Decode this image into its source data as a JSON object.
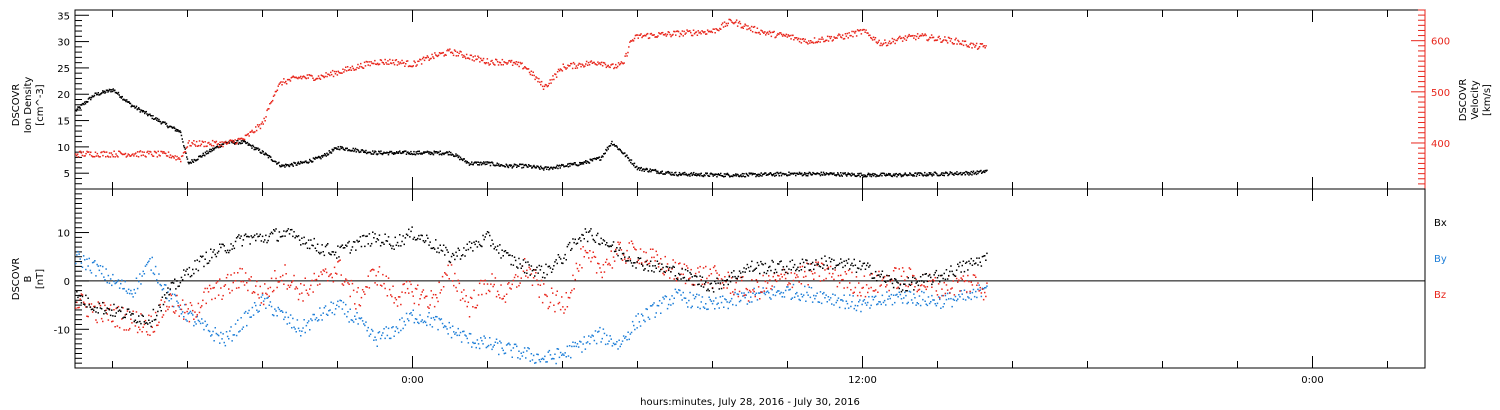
{
  "figure": {
    "xlabel": "hours:minutes, July 28, 2016 - July 30, 2016",
    "x_tick_labels": [
      "0:00",
      "12:00",
      "0:00"
    ]
  },
  "chart_data": [
    {
      "type": "scatter",
      "panel": "plasma",
      "ylabel_left": [
        "DSCOVR",
        "Ion Density",
        "[cm^-3]"
      ],
      "ylabel_right": [
        "DSCOVR",
        "Velocity",
        "[km/s]"
      ],
      "x_unit": "hours since 0:00 July 29, 2016",
      "xlim": [
        -9,
        27
      ],
      "ylim_left": [
        2,
        36
      ],
      "ylim_right": [
        310,
        660
      ],
      "left_ticks": [
        5,
        10,
        15,
        20,
        25,
        30,
        35
      ],
      "right_ticks": [
        400,
        500,
        600
      ],
      "series": [
        {
          "name": "",
          "axis": "left",
          "color": "#000000",
          "x": [
            -9.0,
            -8.5,
            -8.0,
            -7.5,
            -7.0,
            -6.5,
            -6.2,
            -6.0,
            -5.5,
            -5.0,
            -4.5,
            -4.0,
            -3.5,
            -3.0,
            -2.5,
            -2.0,
            -1.5,
            -1.0,
            -0.5,
            0.0,
            0.5,
            1.0,
            1.5,
            2.0,
            2.5,
            3.0,
            3.5,
            4.0,
            4.5,
            5.0,
            5.3,
            5.6,
            6.0,
            7.0,
            8.0,
            9.0,
            10.0,
            11.0,
            12.0,
            13.0,
            14.0,
            15.0,
            15.3
          ],
          "y": [
            17,
            20,
            21,
            18,
            16,
            14,
            13,
            7,
            9,
            11,
            11,
            9,
            6.5,
            7,
            8,
            10,
            9.5,
            9,
            9,
            9,
            9,
            9,
            7,
            7,
            6.5,
            6.5,
            6,
            6.5,
            7,
            8,
            11,
            9,
            6,
            5,
            4.8,
            4.8,
            5,
            5,
            4.8,
            4.8,
            5,
            5.2,
            5.5
          ]
        },
        {
          "name": "",
          "axis": "left",
          "color": "#000000",
          "x": [],
          "y": []
        },
        {
          "name": "",
          "axis": "right",
          "color": "#e8261c",
          "x": [
            -9.0,
            -8.0,
            -7.0,
            -6.5,
            -6.2,
            -6.0,
            -5.5,
            -5.0,
            -4.5,
            -4.0,
            -3.7,
            -3.5,
            -3.0,
            -2.5,
            -2.0,
            -1.5,
            -1.0,
            -0.5,
            0.0,
            0.5,
            1.0,
            1.5,
            2.0,
            2.5,
            3.0,
            3.5,
            4.0,
            4.5,
            5.0,
            5.3,
            5.6,
            5.8,
            6.0,
            7.0,
            8.0,
            8.5,
            9.0,
            9.5,
            10.0,
            10.5,
            11.0,
            11.5,
            12.0,
            12.5,
            13.0,
            13.5,
            14.0,
            14.5,
            15.0,
            15.3
          ],
          "y": [
            380,
            380,
            380,
            378,
            370,
            400,
            400,
            400,
            410,
            440,
            500,
            520,
            530,
            530,
            540,
            550,
            560,
            560,
            555,
            570,
            580,
            570,
            560,
            560,
            550,
            510,
            550,
            555,
            560,
            550,
            555,
            600,
            610,
            615,
            620,
            640,
            625,
            615,
            610,
            600,
            605,
            610,
            620,
            595,
            605,
            610,
            605,
            600,
            590,
            590
          ]
        }
      ]
    },
    {
      "type": "scatter",
      "panel": "magnetic-field",
      "ylabel_left": [
        "DSCOVR",
        "B",
        "[nT]"
      ],
      "x_unit": "hours since 0:00 July 29, 2016",
      "xlim": [
        -9,
        27
      ],
      "ylim": [
        -18,
        19
      ],
      "left_ticks": [
        -10,
        0,
        10
      ],
      "zero_line": true,
      "series": [
        {
          "name": "Bx",
          "color": "#000000",
          "x": [
            -9.0,
            -8.5,
            -8.0,
            -7.5,
            -7.0,
            -6.5,
            -6.0,
            -5.5,
            -5.0,
            -4.5,
            -4.0,
            -3.5,
            -3.0,
            -2.5,
            -2.0,
            -1.5,
            -1.0,
            -0.5,
            0.0,
            0.5,
            1.0,
            1.5,
            2.0,
            2.5,
            3.0,
            3.5,
            4.0,
            4.5,
            5.0,
            5.5,
            6.0,
            7.0,
            8.0,
            9.0,
            10.0,
            11.0,
            12.0,
            13.0,
            14.0,
            15.0,
            15.3
          ],
          "y": [
            -3,
            -5,
            -6,
            -7,
            -8,
            -2,
            2,
            5,
            7,
            9,
            9,
            10,
            9,
            7,
            6,
            8,
            9,
            8,
            10,
            8,
            5,
            7,
            9,
            5,
            3,
            2,
            5,
            10,
            9,
            6,
            4,
            2,
            -1,
            3,
            3,
            4,
            3,
            -1,
            1,
            4,
            5
          ]
        },
        {
          "name": "By",
          "color": "#1f7fd8",
          "x": [
            -9.0,
            -8.5,
            -8.0,
            -7.5,
            -7.0,
            -6.5,
            -6.0,
            -5.5,
            -5.0,
            -4.5,
            -4.0,
            -3.5,
            -3.0,
            -2.5,
            -2.0,
            -1.5,
            -1.0,
            -0.5,
            0.0,
            0.5,
            1.0,
            1.5,
            2.0,
            2.5,
            3.0,
            3.5,
            4.0,
            4.5,
            5.0,
            5.5,
            6.0,
            7.0,
            8.0,
            9.0,
            10.0,
            11.0,
            12.0,
            13.0,
            14.0,
            15.0,
            15.3
          ],
          "y": [
            5,
            3,
            0,
            -2,
            4,
            -3,
            -7,
            -10,
            -12,
            -8,
            -4,
            -7,
            -10,
            -7,
            -5,
            -8,
            -12,
            -10,
            -7,
            -8,
            -10,
            -12,
            -13,
            -14,
            -15,
            -16,
            -15,
            -13,
            -11,
            -13,
            -8,
            -3,
            -5,
            -3,
            -2,
            -3,
            -5,
            -3,
            -4,
            -3,
            0
          ]
        },
        {
          "name": "Bz",
          "color": "#e8261c",
          "x": [
            -9.0,
            -8.5,
            -8.0,
            -7.5,
            -7.0,
            -6.5,
            -6.0,
            -5.5,
            -5.0,
            -4.5,
            -4.0,
            -3.5,
            -3.0,
            -2.5,
            -2.0,
            -1.5,
            -1.0,
            -0.5,
            0.0,
            0.5,
            1.0,
            1.5,
            2.0,
            2.5,
            3.0,
            3.5,
            4.0,
            4.5,
            5.0,
            5.5,
            6.0,
            7.0,
            8.0,
            9.0,
            10.0,
            11.0,
            12.0,
            13.0,
            14.0,
            15.0,
            15.3
          ],
          "y": [
            -4,
            -6,
            -7,
            -8,
            -9,
            -4,
            -7,
            -3,
            -1,
            1,
            -3,
            2,
            -2,
            0,
            3,
            -4,
            2,
            -3,
            -2,
            -4,
            2,
            -5,
            0,
            -3,
            3,
            -3,
            -5,
            5,
            3,
            6,
            6,
            2,
            1,
            -2,
            1,
            2,
            -1,
            1,
            -1,
            0,
            -2
          ]
        }
      ]
    }
  ]
}
